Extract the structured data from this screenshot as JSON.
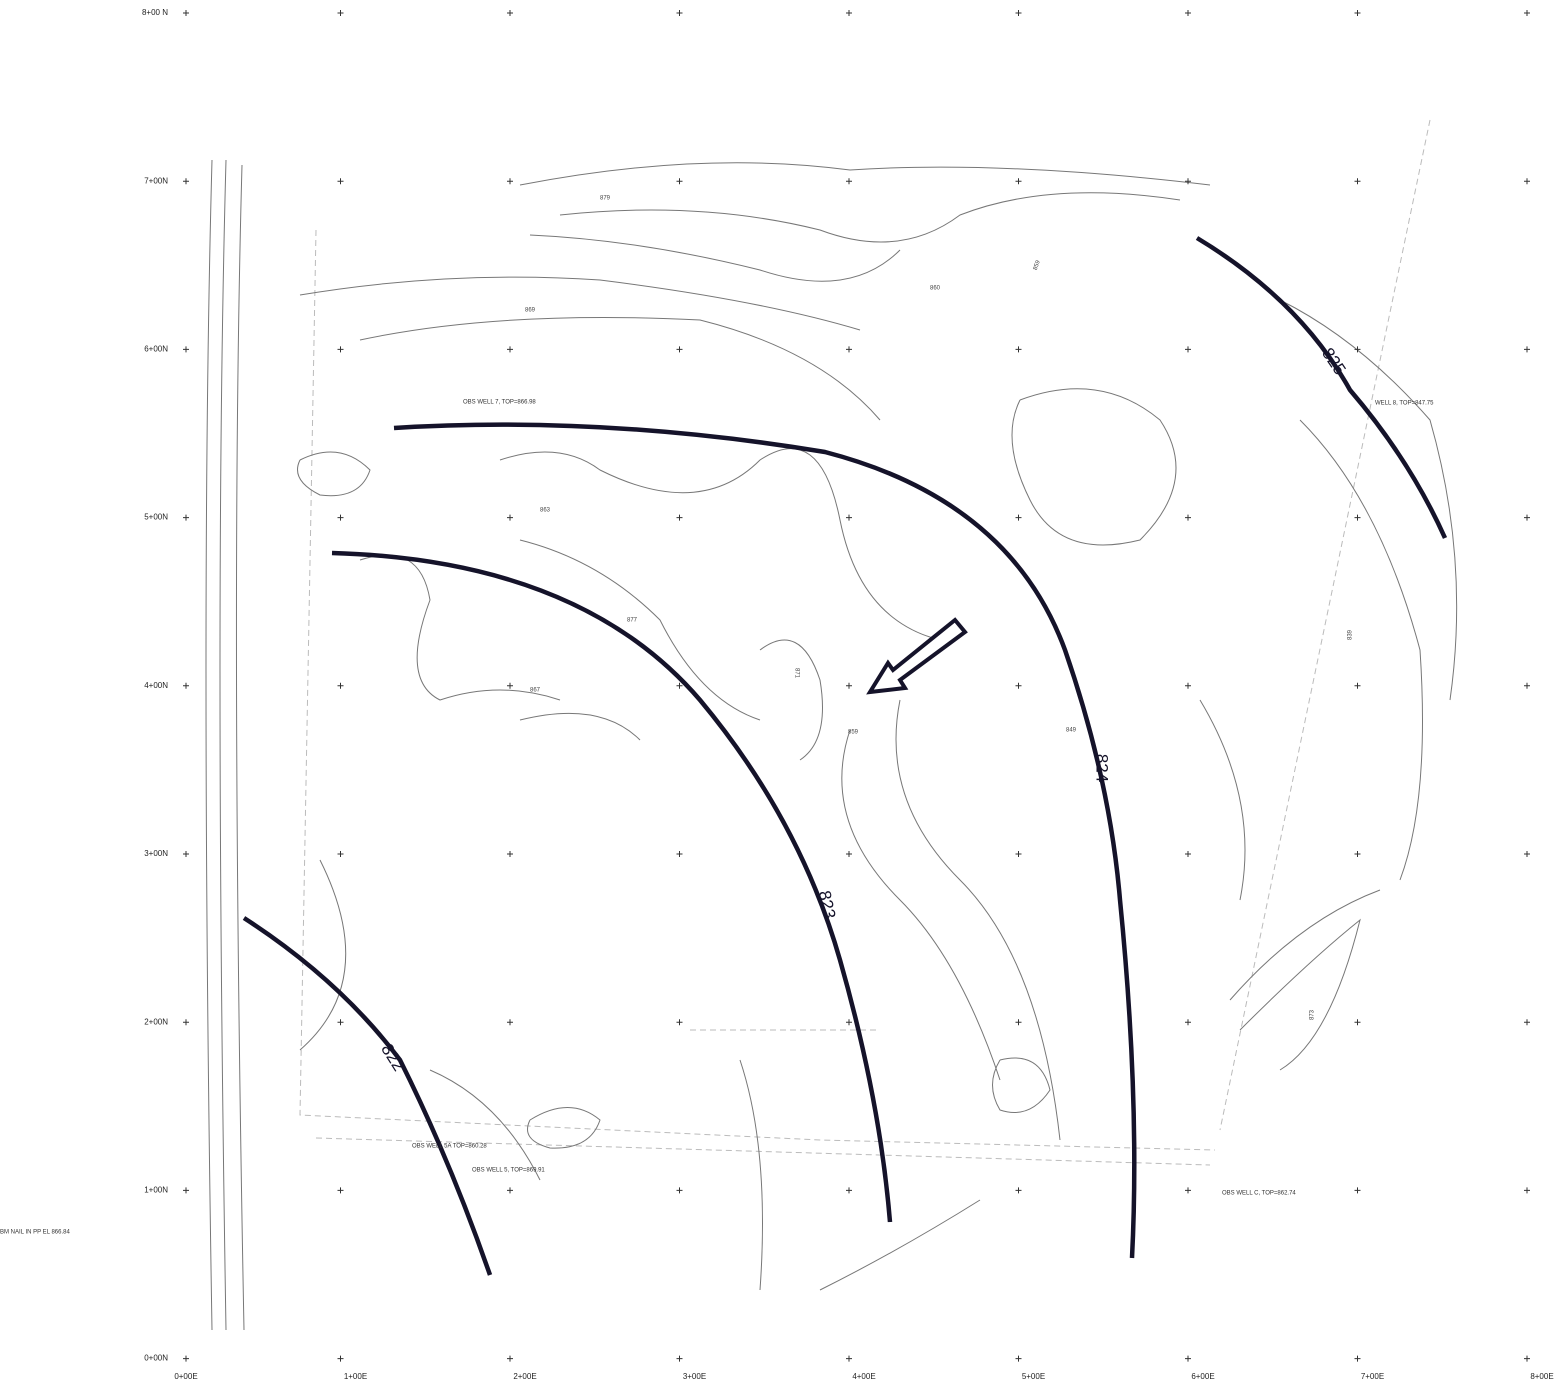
{
  "grid": {
    "north_labels": [
      "8+00 N",
      "7+00N",
      "6+00N",
      "5+00N",
      "4+00N",
      "3+00N",
      "2+00N",
      "1+00N",
      "0+00N"
    ],
    "east_labels": [
      "0+00E",
      "1+00E",
      "2+00E",
      "3+00E",
      "4+00E",
      "5+00E",
      "6+00E",
      "7+00E",
      "8+00E"
    ]
  },
  "heavy_contours": [
    "822",
    "823",
    "824",
    "825"
  ],
  "contour_labels": [
    "879",
    "869",
    "863",
    "877",
    "871",
    "867",
    "859",
    "860",
    "859",
    "849",
    "839",
    "873"
  ],
  "wells": [
    "OBS WELL 7, TOP=866.98",
    "WELL 8, TOP=847.75",
    "OBS WELL 5A TOP=860.28",
    "OBS WELL 5, TOP=869.91",
    "OBS WELL C, TOP=862.74"
  ],
  "benchmark": "BM NAIL IN PP EL 866.84"
}
